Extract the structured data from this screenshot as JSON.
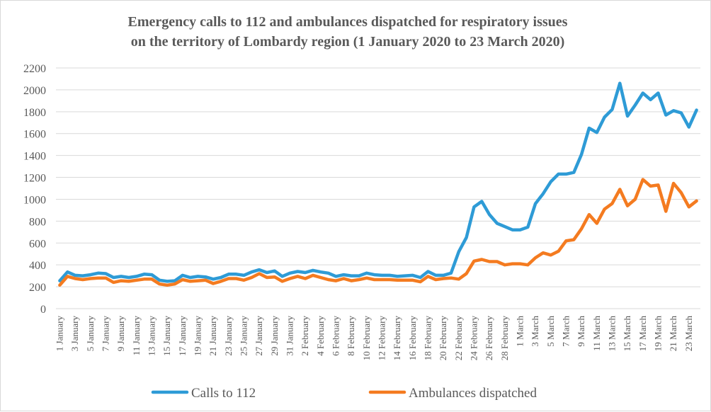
{
  "chart_data": {
    "type": "line",
    "title_line1": "Emergency calls to 112 and ambulances dispatched for respiratory issues",
    "title_line2": "on the territory of  Lombardy region (1 January 2020 to 23 March 2020)",
    "xlabel": "",
    "ylabel": "",
    "ylim": [
      0,
      2200
    ],
    "yticks": [
      0,
      200,
      400,
      600,
      800,
      1000,
      1200,
      1400,
      1600,
      1800,
      2000,
      2200
    ],
    "grid": true,
    "legend_position": "bottom",
    "tick_labels": [
      "1 January",
      "3 January",
      "5 January",
      "7 January",
      "9 January",
      "11 January",
      "13 January",
      "15 January",
      "17 January",
      "19 January",
      "21 January",
      "23 January",
      "25 January",
      "27 January",
      "29 January",
      "31 January",
      "2 February",
      "4 February",
      "6 February",
      "8 February",
      "10 February",
      "12 February",
      "14 February",
      "16 February",
      "18 February",
      "20 February",
      "22 February",
      "24 February",
      "26 February",
      "28 February",
      "1 March",
      "3 March",
      "5 March",
      "7 March",
      "9 March",
      "11 March",
      "13 March",
      "15 March",
      "17 March",
      "19 March",
      "21 March",
      "23 March"
    ],
    "series": [
      {
        "name": "Calls to 112",
        "color": "#2E9BD6",
        "values": [
          255,
          335,
          305,
          300,
          310,
          325,
          320,
          285,
          295,
          285,
          295,
          315,
          310,
          260,
          250,
          255,
          305,
          285,
          295,
          290,
          270,
          285,
          315,
          315,
          305,
          335,
          355,
          330,
          345,
          295,
          325,
          340,
          330,
          350,
          335,
          325,
          295,
          310,
          300,
          300,
          325,
          310,
          305,
          305,
          295,
          300,
          305,
          285,
          340,
          305,
          305,
          325,
          520,
          650,
          930,
          980,
          860,
          780,
          750,
          720,
          720,
          745,
          960,
          1050,
          1160,
          1230,
          1230,
          1245,
          1410,
          1650,
          1610,
          1750,
          1820,
          2060,
          1760,
          1860,
          1970,
          1910,
          1970,
          1770,
          1810,
          1790,
          1660,
          1815
        ]
      },
      {
        "name": "Ambulances dispatched",
        "color": "#F47B20",
        "values": [
          215,
          295,
          275,
          265,
          275,
          280,
          280,
          240,
          255,
          250,
          260,
          270,
          270,
          225,
          215,
          225,
          265,
          250,
          255,
          260,
          230,
          250,
          275,
          275,
          260,
          285,
          320,
          285,
          290,
          250,
          275,
          295,
          275,
          305,
          285,
          265,
          255,
          275,
          255,
          265,
          280,
          265,
          265,
          265,
          260,
          260,
          260,
          245,
          295,
          265,
          275,
          280,
          270,
          320,
          435,
          450,
          430,
          430,
          400,
          410,
          410,
          400,
          465,
          510,
          490,
          525,
          620,
          630,
          730,
          860,
          780,
          910,
          960,
          1090,
          940,
          1000,
          1180,
          1120,
          1130,
          890,
          1145,
          1060,
          930,
          985
        ]
      }
    ]
  }
}
